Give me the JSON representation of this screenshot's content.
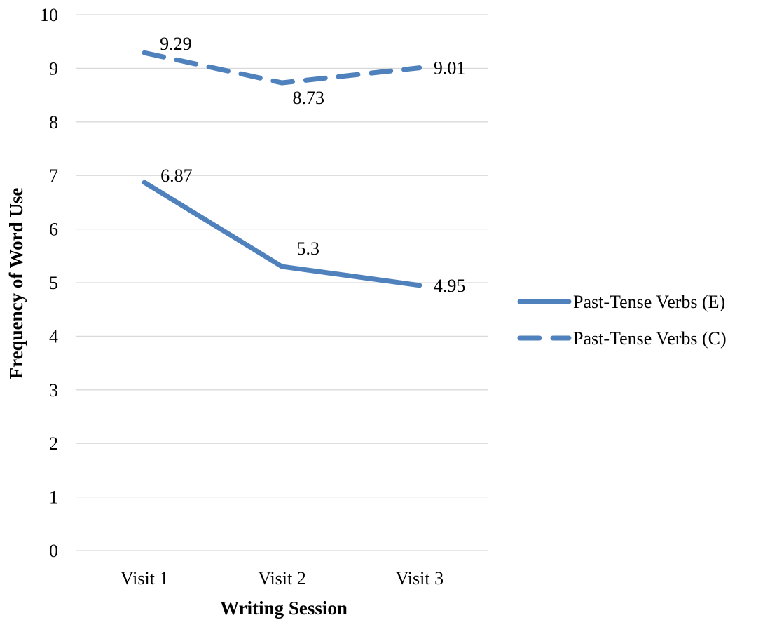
{
  "chart_data": {
    "type": "line",
    "title": "",
    "xlabel": "Writing Session",
    "ylabel": "Frequency of Word Use",
    "categories": [
      "Visit 1",
      "Visit 2",
      "Visit 3"
    ],
    "ylim": [
      0,
      10
    ],
    "yticks": [
      0,
      1,
      2,
      3,
      4,
      5,
      6,
      7,
      8,
      9,
      10
    ],
    "grid": true,
    "legend_position": "right",
    "series": [
      {
        "name": "Past-Tense Verbs (E)",
        "values": [
          6.87,
          5.3,
          4.95
        ],
        "data_labels": [
          "6.87",
          "5.3",
          "4.95"
        ],
        "line_style": "solid",
        "color": "#4f81bd"
      },
      {
        "name": "Past-Tense Verbs (C)",
        "values": [
          9.29,
          8.73,
          9.01
        ],
        "data_labels": [
          "9.29",
          "8.73",
          "9.01"
        ],
        "line_style": "dashed",
        "color": "#4f81bd"
      }
    ],
    "colors": {
      "gridline": "#d9d9d9",
      "text": "#000000"
    }
  }
}
